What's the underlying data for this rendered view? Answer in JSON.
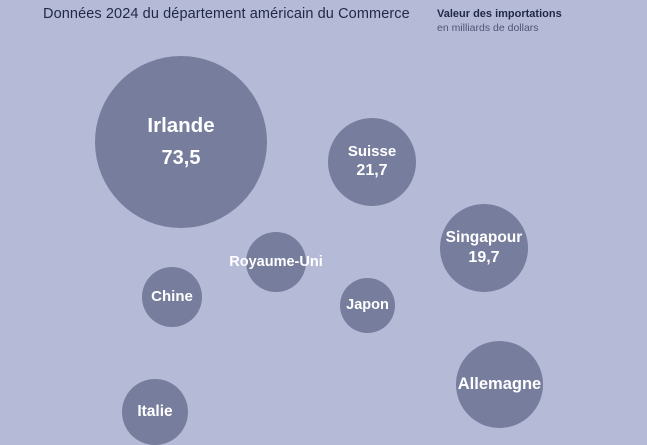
{
  "header": {
    "source_note": "Données 2024 du département américain du Commerce",
    "legend_title": "Valeur des importations",
    "legend_subtitle": "en milliards de dollars"
  },
  "colors": {
    "background": "#b5bad7",
    "bubble": "#777d9d",
    "title_text": "#1f2847",
    "subtitle_text": "#4e5675",
    "bubble_text": "#ffffff"
  },
  "chart_data": {
    "type": "bubble",
    "title": "Valeur des importations",
    "unit": "en milliards de dollars",
    "source": "Données 2024 du département américain du Commerce",
    "legend_position": "top-right",
    "points": [
      {
        "label": "Irlande",
        "value": 73.5,
        "value_display": "73,5"
      },
      {
        "label": "Suisse",
        "value": 21.7,
        "value_display": "21,7"
      },
      {
        "label": "Singapour",
        "value": 19.7,
        "value_display": "19,7"
      },
      {
        "label": "Royaume-Uni"
      },
      {
        "label": "Chine"
      },
      {
        "label": "Japon"
      },
      {
        "label": "Allemagne"
      },
      {
        "label": "Italie"
      }
    ]
  }
}
